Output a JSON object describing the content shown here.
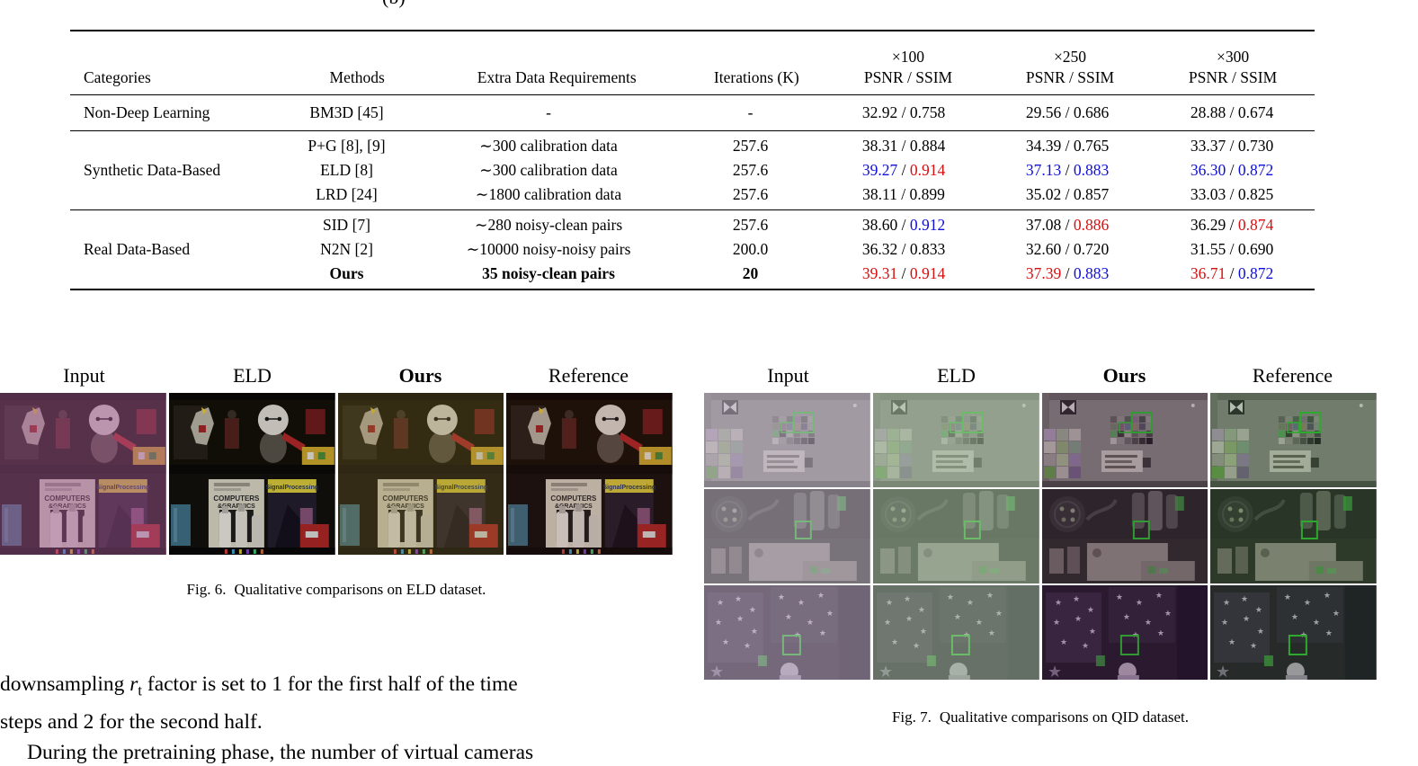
{
  "top_partial_caption": "(b)",
  "colors": {
    "black": "#000000",
    "blue": "#0f0fd6",
    "red": "#d61010",
    "annotation_green": "#2bd12b"
  },
  "table": {
    "headers": {
      "categories": "Categories",
      "methods": "Methods",
      "extra_data": "Extra Data Requirements",
      "iterations": "Iterations (K)",
      "cols": [
        {
          "scale": "×100",
          "metric": "PSNR / SSIM"
        },
        {
          "scale": "×250",
          "metric": "PSNR / SSIM"
        },
        {
          "scale": "×300",
          "metric": "PSNR / SSIM"
        }
      ]
    },
    "groups": [
      {
        "category": "Non-Deep Learning",
        "rows": [
          {
            "method": "BM3D [45]",
            "extra": "-",
            "iters": "-",
            "bold": false,
            "cells": [
              {
                "psnr": "32.92",
                "ssim": "0.758",
                "pc": "black",
                "sc": "black"
              },
              {
                "psnr": "29.56",
                "ssim": "0.686",
                "pc": "black",
                "sc": "black"
              },
              {
                "psnr": "28.88",
                "ssim": "0.674",
                "pc": "black",
                "sc": "black"
              }
            ]
          }
        ]
      },
      {
        "category": "Synthetic Data-Based",
        "rows": [
          {
            "method": "P+G [8], [9]",
            "extra": "∼300 calibration data",
            "iters": "257.6",
            "bold": false,
            "cells": [
              {
                "psnr": "38.31",
                "ssim": "0.884",
                "pc": "black",
                "sc": "black"
              },
              {
                "psnr": "34.39",
                "ssim": "0.765",
                "pc": "black",
                "sc": "black"
              },
              {
                "psnr": "33.37",
                "ssim": "0.730",
                "pc": "black",
                "sc": "black"
              }
            ]
          },
          {
            "method": "ELD [8]",
            "extra": "∼300 calibration data",
            "iters": "257.6",
            "bold": false,
            "cells": [
              {
                "psnr": "39.27",
                "ssim": "0.914",
                "pc": "blue",
                "sc": "red"
              },
              {
                "psnr": "37.13",
                "ssim": "0.883",
                "pc": "blue",
                "sc": "blue"
              },
              {
                "psnr": "36.30",
                "ssim": "0.872",
                "pc": "blue",
                "sc": "blue"
              }
            ]
          },
          {
            "method": "LRD [24]",
            "extra": "∼1800 calibration data",
            "iters": "257.6",
            "bold": false,
            "cells": [
              {
                "psnr": "38.11",
                "ssim": "0.899",
                "pc": "black",
                "sc": "black"
              },
              {
                "psnr": "35.02",
                "ssim": "0.857",
                "pc": "black",
                "sc": "black"
              },
              {
                "psnr": "33.03",
                "ssim": "0.825",
                "pc": "black",
                "sc": "black"
              }
            ]
          }
        ]
      },
      {
        "category": "Real Data-Based",
        "rows": [
          {
            "method": "SID [7]",
            "extra": "∼280 noisy-clean pairs",
            "iters": "257.6",
            "bold": false,
            "cells": [
              {
                "psnr": "38.60",
                "ssim": "0.912",
                "pc": "black",
                "sc": "blue"
              },
              {
                "psnr": "37.08",
                "ssim": "0.886",
                "pc": "black",
                "sc": "red"
              },
              {
                "psnr": "36.29",
                "ssim": "0.874",
                "pc": "black",
                "sc": "red"
              }
            ]
          },
          {
            "method": "N2N [2]",
            "extra": "∼10000 noisy-noisy pairs",
            "iters": "200.0",
            "bold": false,
            "cells": [
              {
                "psnr": "36.32",
                "ssim": "0.833",
                "pc": "black",
                "sc": "black"
              },
              {
                "psnr": "32.60",
                "ssim": "0.720",
                "pc": "black",
                "sc": "black"
              },
              {
                "psnr": "31.55",
                "ssim": "0.690",
                "pc": "black",
                "sc": "black"
              }
            ]
          },
          {
            "method": "Ours",
            "extra": "35 noisy-clean pairs",
            "iters": "20",
            "bold": true,
            "cells": [
              {
                "psnr": "39.31",
                "ssim": "0.914",
                "pc": "red",
                "sc": "red"
              },
              {
                "psnr": "37.39",
                "ssim": "0.883",
                "pc": "red",
                "sc": "blue"
              },
              {
                "psnr": "36.71",
                "ssim": "0.872",
                "pc": "red",
                "sc": "blue"
              }
            ]
          }
        ]
      }
    ]
  },
  "fig6": {
    "labels": [
      "Input",
      "ELD",
      "Ours",
      "Reference"
    ],
    "caption_label": "Fig. 6.",
    "caption_text": "Qualitative comparisons on ELD dataset.",
    "rows": [
      "toys",
      "magazines"
    ],
    "tints": [
      "rgba(154,82,138,0.50)",
      "rgba(0,0,0,0.12)",
      "rgba(120,104,44,0.32)",
      "rgba(70,20,20,0.18)"
    ]
  },
  "fig7": {
    "labels": [
      "Input",
      "ELD",
      "Ours",
      "Reference"
    ],
    "caption_label": "Fig. 7.",
    "caption_text": "Qualitative comparisons on QID dataset.",
    "rows": [
      "colorchecker",
      "shelf",
      "stars"
    ],
    "tints": [
      "rgba(176,162,182,0.58)",
      "rgba(150,172,146,0.60)",
      "rgba(66,26,70,0.30)",
      "rgba(50,80,50,0.30)"
    ]
  },
  "scenes": {
    "magazines": {
      "title1": "COMPUTERS",
      "title1b": "&GRAPHICS",
      "title2": "SignalProcessing"
    }
  },
  "body_text": {
    "line1_pre": "downsampling ",
    "line1_var": "r",
    "line1_sub": "t",
    "line1_post": " factor is set to 1 for the first half of the time",
    "line2": "steps and 2 for the second half.",
    "line3": "During the pretraining phase, the number of virtual cameras"
  }
}
